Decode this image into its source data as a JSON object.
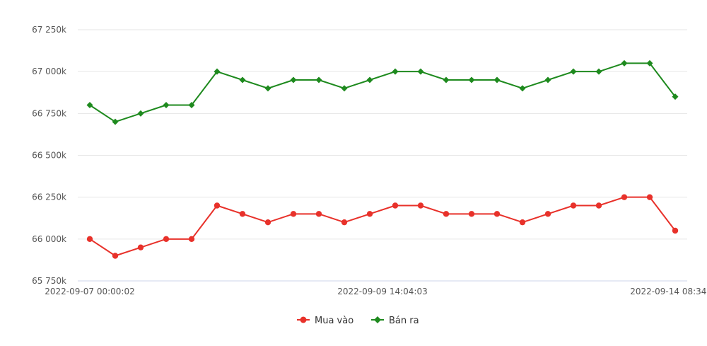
{
  "chart_data": {
    "type": "line",
    "title": "",
    "xlabel": "",
    "ylabel": "",
    "ylim": [
      65750,
      67250
    ],
    "yticks": [
      65750,
      66000,
      66250,
      66500,
      66750,
      67000,
      67250
    ],
    "ytick_labels": [
      "65 750k",
      "66 000k",
      "66 250k",
      "66 500k",
      "66 750k",
      "67 000k",
      "67 250k"
    ],
    "x_point_count": 24,
    "xtick_labels": [
      {
        "index": 0,
        "label": "2022-09-07 00:00:02"
      },
      {
        "index": 11.5,
        "label": "2022-09-09 14:04:03"
      },
      {
        "index": 23,
        "label": "2022-09-14 08:34:01"
      }
    ],
    "grid": true,
    "legend_position": "bottom",
    "series": [
      {
        "name": "Mua vào",
        "color": "#e8312a",
        "marker": "circle",
        "values": [
          66000,
          65900,
          65950,
          66000,
          66000,
          66200,
          66150,
          66100,
          66150,
          66150,
          66100,
          66150,
          66200,
          66200,
          66150,
          66150,
          66150,
          66100,
          66150,
          66200,
          66200,
          66250,
          66250,
          66050
        ]
      },
      {
        "name": "Bán ra",
        "color": "#1e8a1e",
        "marker": "diamond",
        "values": [
          66800,
          66700,
          66750,
          66800,
          66800,
          67000,
          66950,
          66900,
          66950,
          66950,
          66900,
          66950,
          67000,
          67000,
          66950,
          66950,
          66950,
          66900,
          66950,
          67000,
          67000,
          67050,
          67050,
          66850
        ]
      }
    ]
  }
}
